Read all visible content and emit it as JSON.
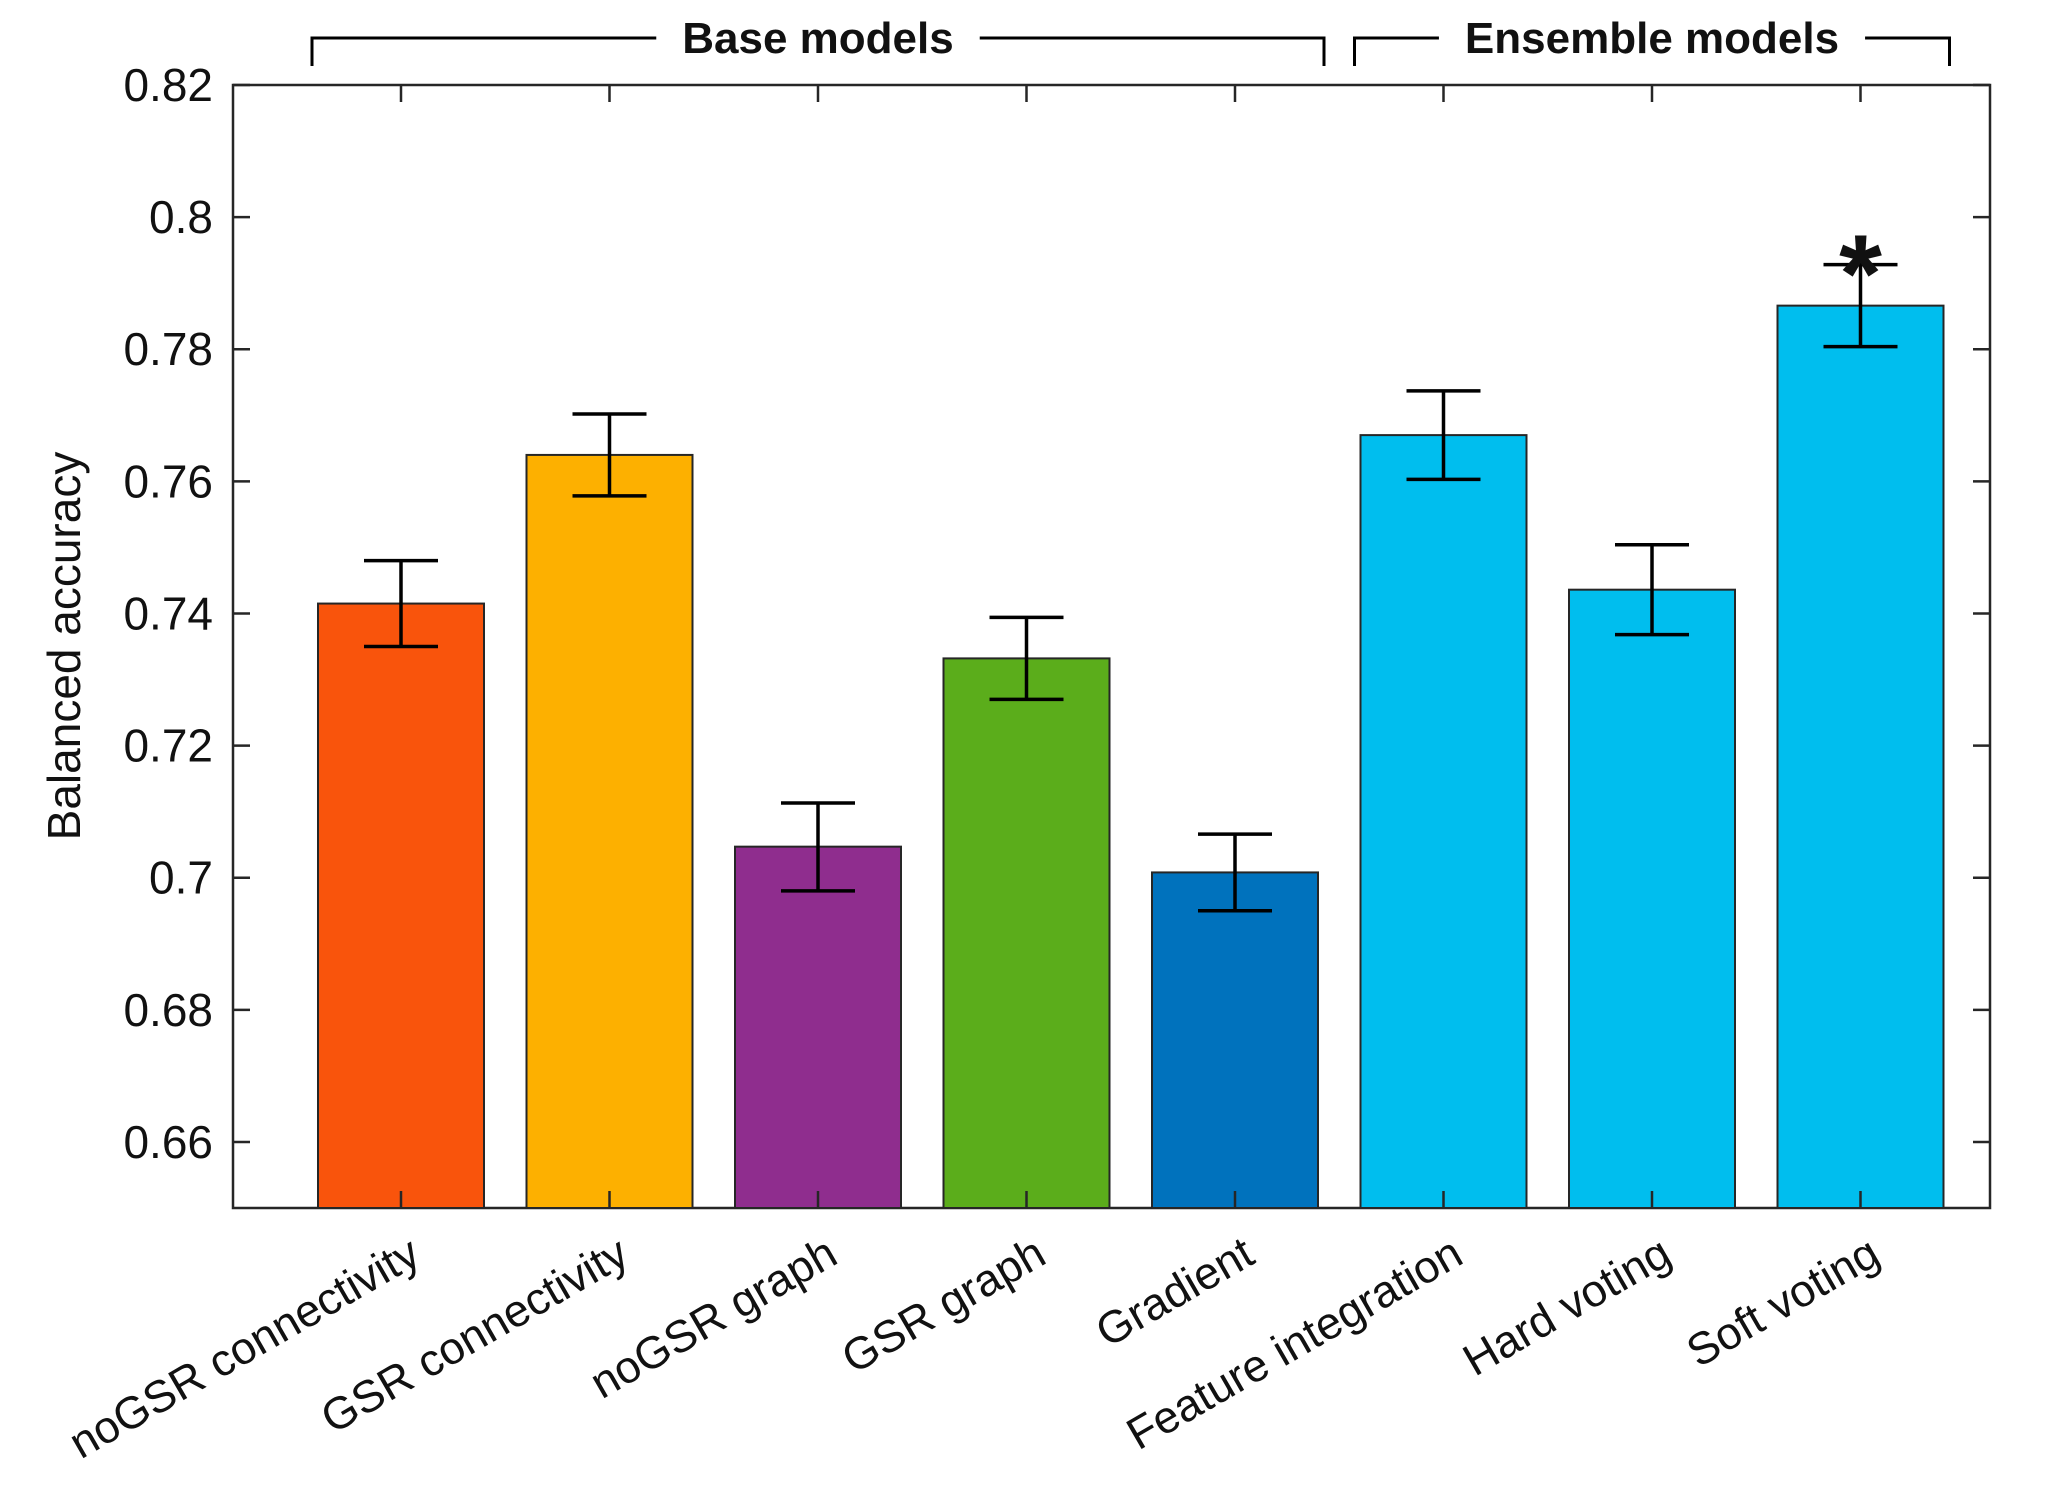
{
  "chart_data": {
    "type": "bar",
    "title": "",
    "xlabel": "",
    "ylabel": "Balanced accuracy",
    "ylim": [
      0.65,
      0.82
    ],
    "yticks": [
      "0.66",
      "0.68",
      "0.7",
      "0.72",
      "0.74",
      "0.76",
      "0.78",
      "0.8",
      "0.82"
    ],
    "grid": false,
    "legend": null,
    "categories": [
      "noGSR connectivity",
      "GSR connectivity",
      "noGSR graph",
      "GSR graph",
      "Gradient",
      "Feature integration",
      "Hard voting",
      "Soft voting"
    ],
    "values": [
      0.7415,
      0.764,
      0.7047,
      0.7332,
      0.7008,
      0.767,
      0.7436,
      0.7866
    ],
    "error_low": [
      0.735,
      0.7578,
      0.698,
      0.727,
      0.695,
      0.7603,
      0.7368,
      0.7804
    ],
    "error_high": [
      0.748,
      0.7702,
      0.7113,
      0.7394,
      0.7066,
      0.7737,
      0.7504,
      0.7928
    ],
    "colors": [
      "#F9540C",
      "#FDB000",
      "#8F2D8E",
      "#5BAD1B",
      "#0072BD",
      "#00BEEE",
      "#00BEEE",
      "#00BEEE"
    ],
    "groups": [
      {
        "label": "Base models",
        "from": 0,
        "to": 4
      },
      {
        "label": "Ensemble models",
        "from": 5,
        "to": 7
      }
    ],
    "annotations": [
      {
        "text": "*",
        "category_index": 7,
        "meaning": "significance marker"
      }
    ]
  }
}
